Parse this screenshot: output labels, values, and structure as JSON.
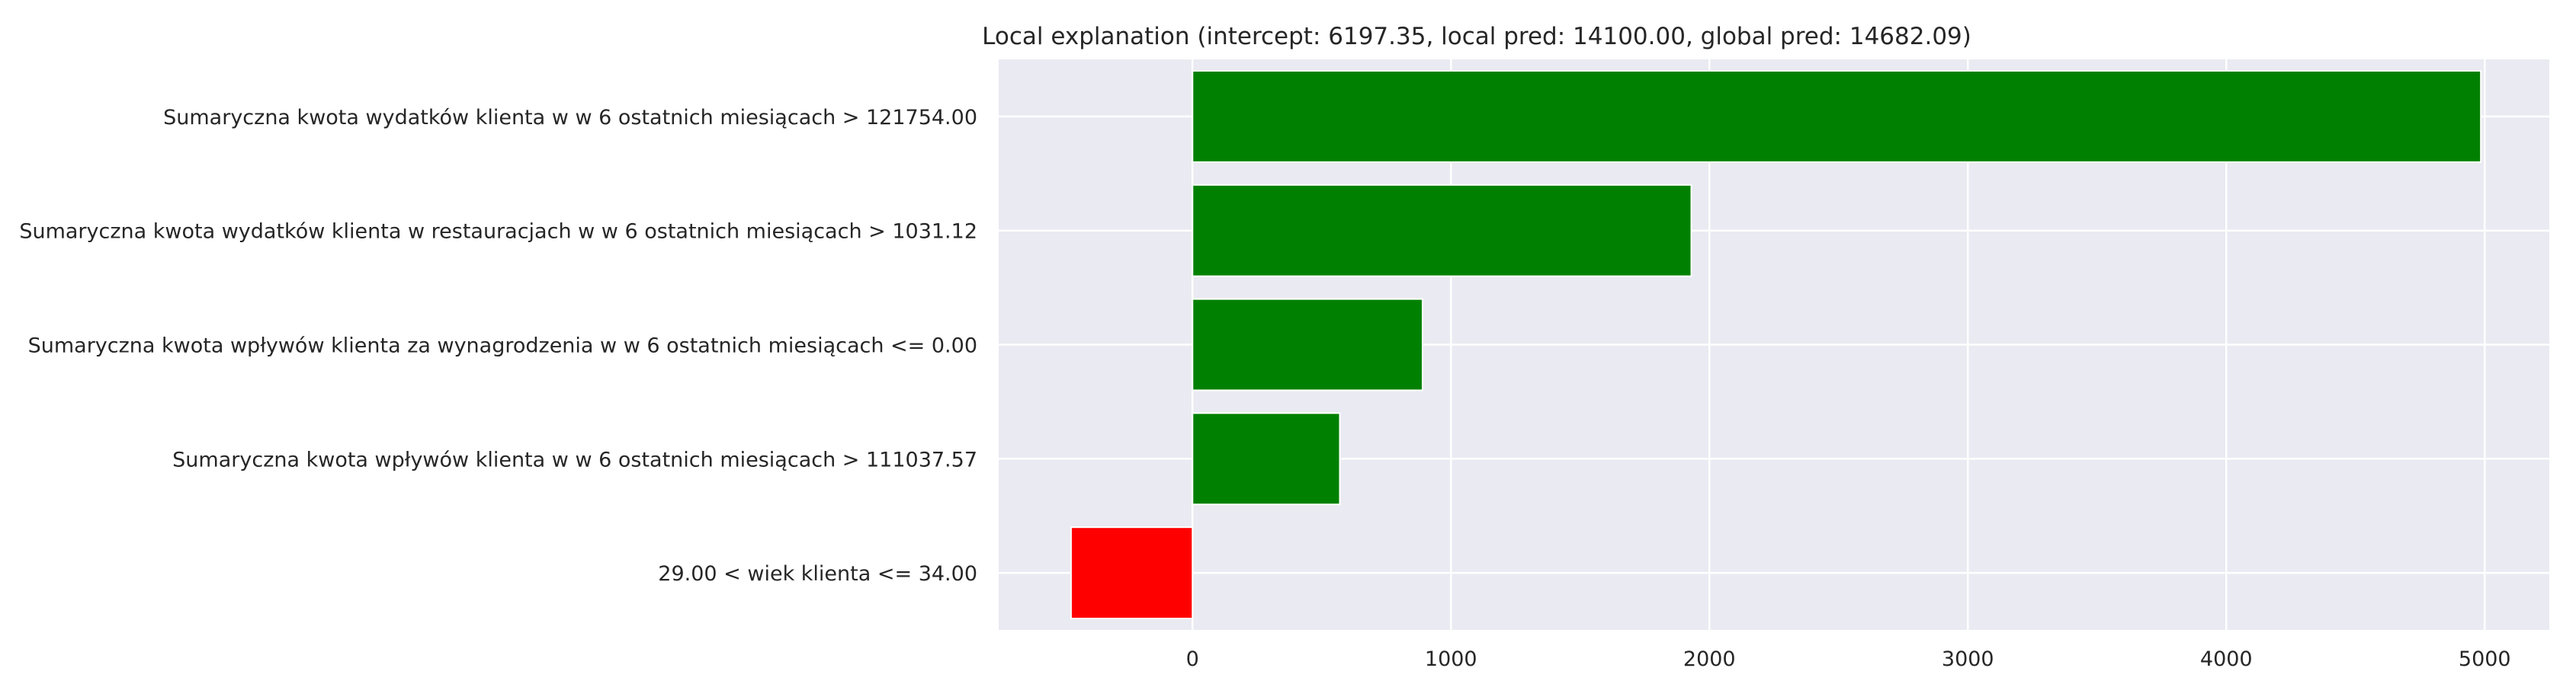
{
  "chart_data": {
    "type": "bar",
    "orientation": "horizontal",
    "title": "Local explanation (intercept: 6197.35, local pred: 14100.00, global pred: 14682.09)",
    "xlabel": "",
    "ylabel": "",
    "xlim": [
      -750,
      5250
    ],
    "xticks": [
      0,
      1000,
      2000,
      3000,
      4000,
      5000
    ],
    "xtick_labels": [
      "0",
      "1000",
      "2000",
      "3000",
      "4000",
      "5000"
    ],
    "grid": true,
    "categories": [
      "Sumaryczna kwota wydatków klienta w w 6 ostatnich miesiącach > 121754.00",
      "Sumaryczna kwota wydatków klienta w restauracjach w w 6 ostatnich miesiącach > 1031.12",
      "Sumaryczna kwota wpływów klienta za wynagrodzenia w w 6 ostatnich miesiącach <= 0.00",
      "Sumaryczna kwota wpływów klienta w w 6 ostatnich miesiącach > 111037.57",
      "29.00 < wiek klienta <= 34.00"
    ],
    "values": [
      4985,
      1930,
      890,
      570,
      -470
    ],
    "colors": {
      "positive": "#008000",
      "negative": "#ff0000",
      "plot_background": "#eaeaf2",
      "grid": "#ffffff",
      "text": "#262626"
    }
  }
}
